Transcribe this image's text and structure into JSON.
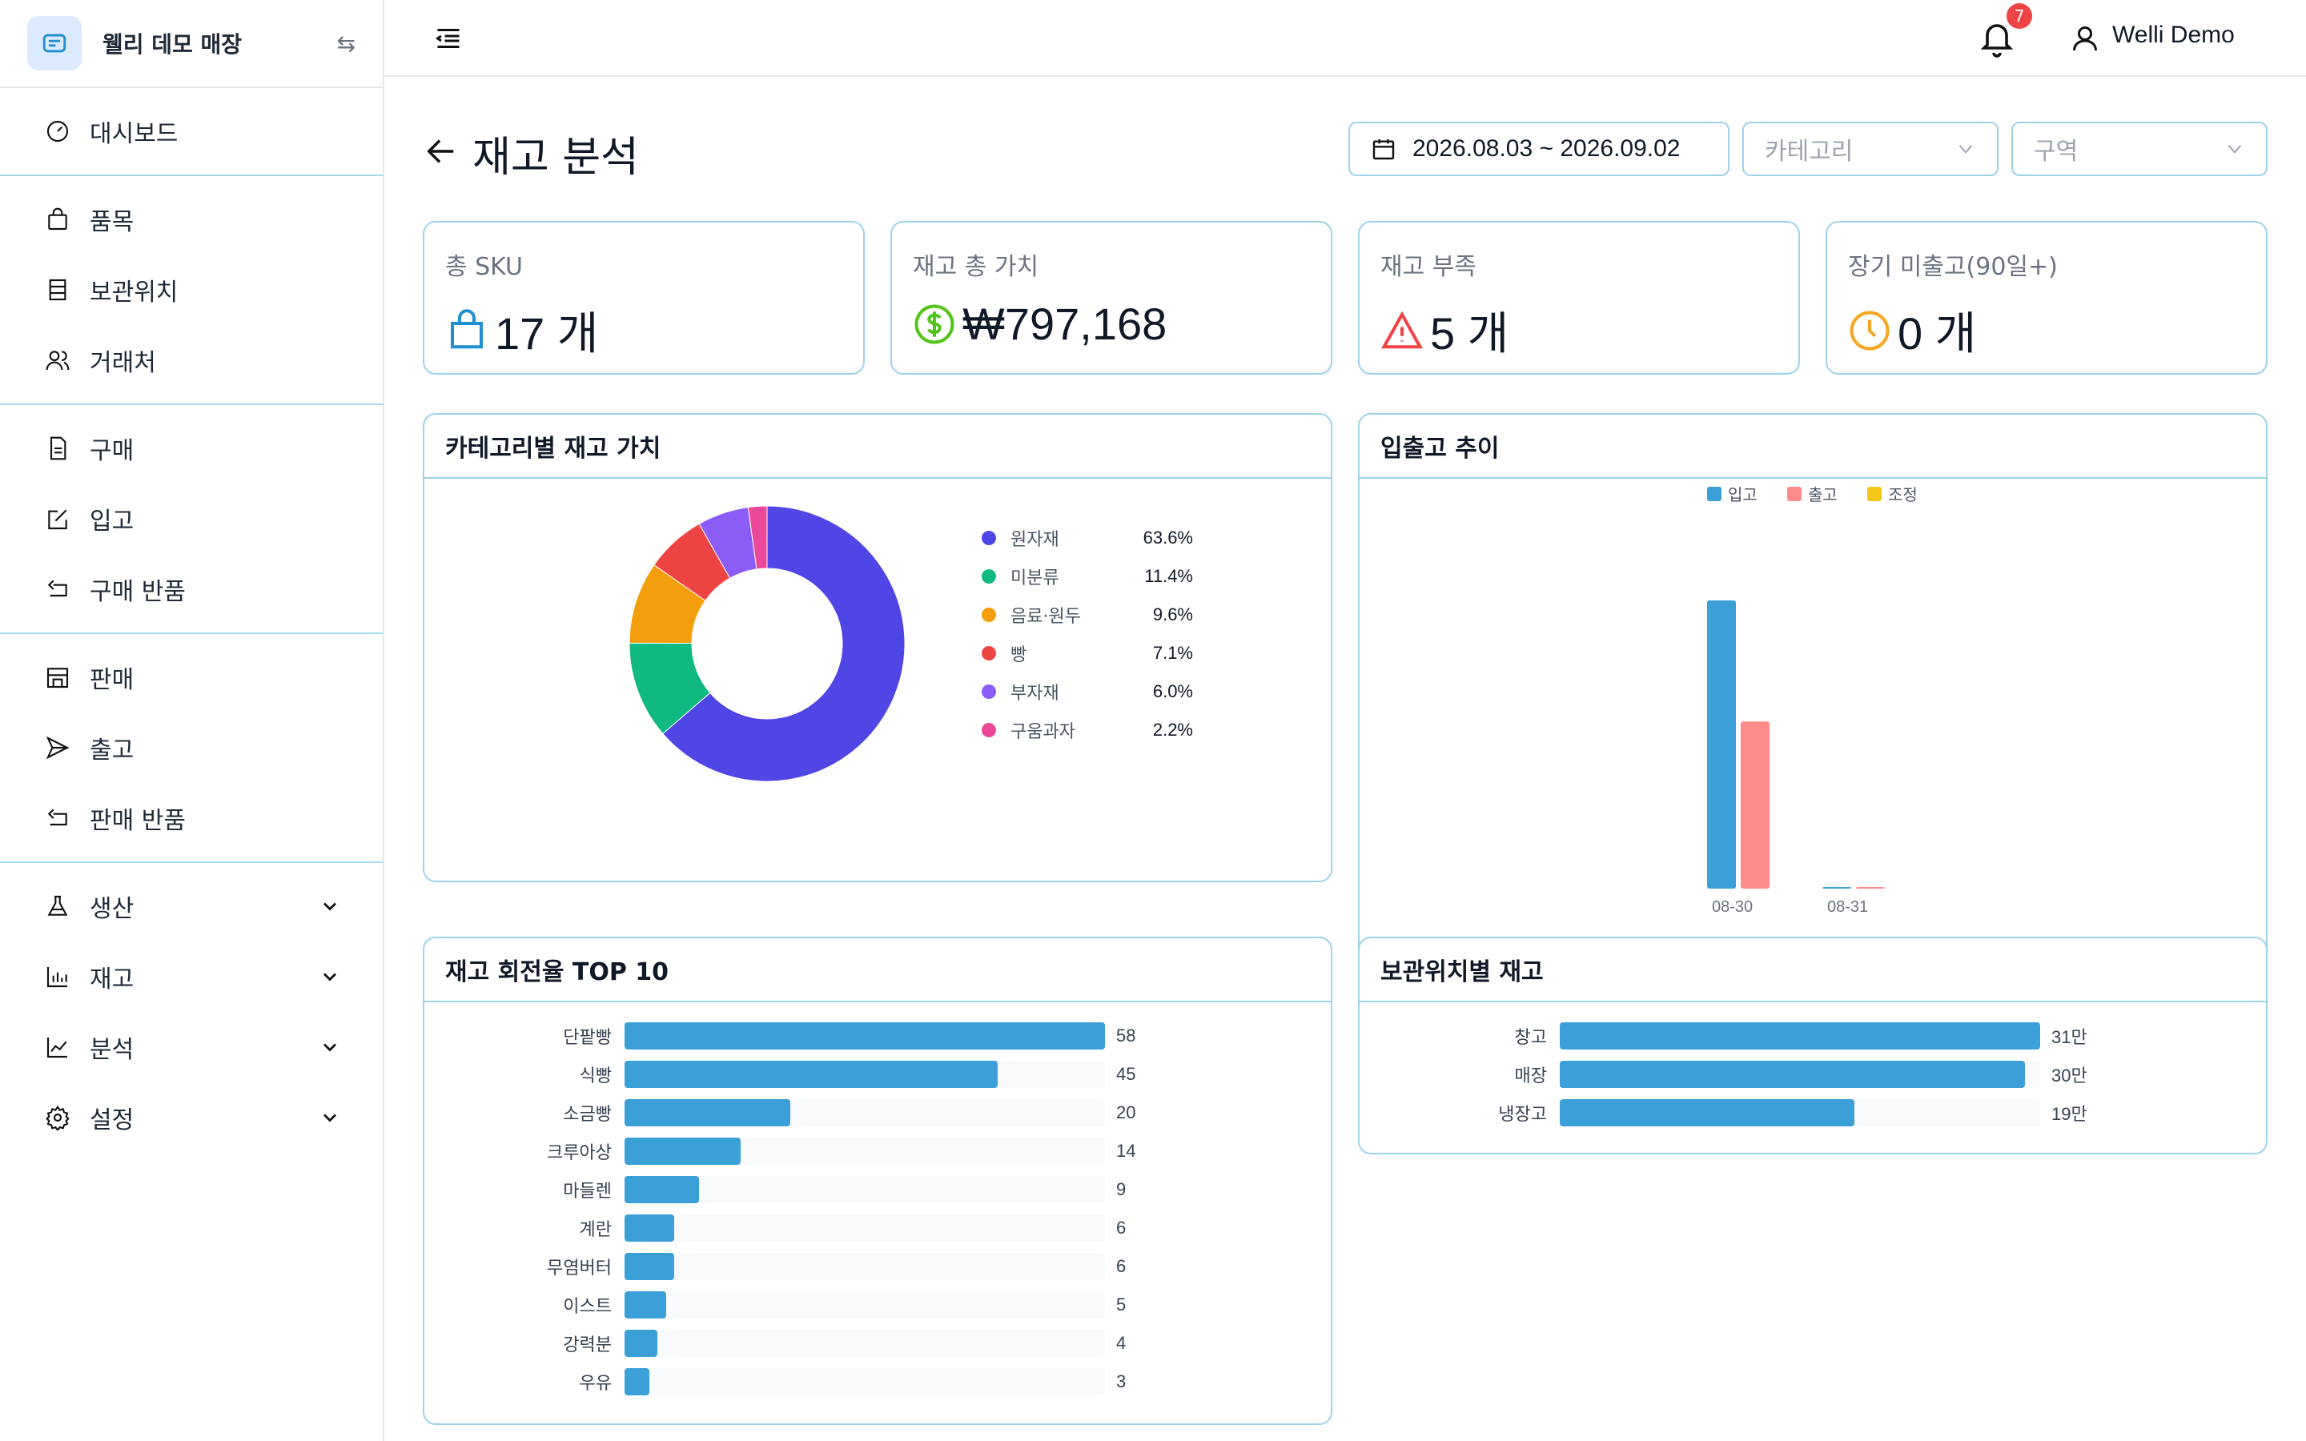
{
  "brand": {
    "name": "웰리 데모 매장",
    "swap_icon": "swap-icon"
  },
  "nav": {
    "dashboard": "대시보드",
    "items": "품목",
    "locations": "보관위치",
    "partners": "거래처",
    "purchase": "구매",
    "inbound": "입고",
    "purchase_return": "구매 반품",
    "sales": "판매",
    "outbound": "출고",
    "sales_return": "판매 반품",
    "production": "생산",
    "inventory": "재고",
    "analysis": "분석",
    "settings": "설정"
  },
  "header": {
    "notification_count": "7",
    "user_name": "Welli Demo"
  },
  "page": {
    "title": "재고 분석"
  },
  "filters": {
    "date_range": "2026.08.03 ~ 2026.09.02",
    "category_placeholder": "카테고리",
    "zone_placeholder": "구역"
  },
  "kpis": [
    {
      "label": "총 SKU",
      "value": "17 개",
      "icon": "bag-icon",
      "color": "#1f8fd1"
    },
    {
      "label": "재고 총 가치",
      "value": "₩797,168",
      "icon": "dollar-icon",
      "color": "#52c41a"
    },
    {
      "label": "재고 부족",
      "value": "5 개",
      "icon": "warning-icon",
      "color": "#ef4444"
    },
    {
      "label": "장기 미출고(90일+)",
      "value": "0 개",
      "icon": "clock-icon",
      "color": "#f5a623"
    }
  ],
  "panels": {
    "donut_title": "카테고리별 재고 가치",
    "trend_title": "입출고 추이",
    "turnover_title": "재고 회전율 TOP 10",
    "location_title": "보관위치별 재고"
  },
  "chart_data": [
    {
      "type": "pie",
      "title": "카테고리별 재고 가치",
      "categories": [
        "원자재",
        "미분류",
        "음료·원두",
        "빵",
        "부자재",
        "구움과자"
      ],
      "values": [
        63.6,
        11.4,
        9.6,
        7.1,
        6.0,
        2.2
      ],
      "labels": [
        "63.6%",
        "11.4%",
        "9.6%",
        "7.1%",
        "6.0%",
        "2.2%"
      ],
      "colors": [
        "#5046e5",
        "#10b981",
        "#f59e0b",
        "#ef4444",
        "#8b5cf6",
        "#ec4899"
      ],
      "legend": "right"
    },
    {
      "type": "bar",
      "title": "입출고 추이",
      "categories": [
        "08-30",
        "08-31"
      ],
      "series": [
        {
          "name": "입고",
          "values": [
            100,
            0
          ],
          "color": "#3b9fd8"
        },
        {
          "name": "출고",
          "values": [
            58,
            0
          ],
          "color": "#ff8a8a"
        },
        {
          "name": "조정",
          "values": [
            0,
            0
          ],
          "color": "#f5c518"
        }
      ],
      "legend": "top-center"
    },
    {
      "type": "bar",
      "orientation": "horizontal",
      "title": "재고 회전율 TOP 10",
      "categories": [
        "단팥빵",
        "식빵",
        "소금빵",
        "크루아상",
        "마들렌",
        "계란",
        "무염버터",
        "이스트",
        "강력분",
        "우유"
      ],
      "values": [
        58,
        45,
        20,
        14,
        9,
        6,
        6,
        5,
        4,
        3
      ],
      "labels": [
        "58",
        "45",
        "20",
        "14",
        "9",
        "6",
        "6",
        "5",
        "4",
        "3"
      ],
      "xlim": [
        0,
        58
      ],
      "color": "#3b9fd8"
    },
    {
      "type": "bar",
      "orientation": "horizontal",
      "title": "보관위치별 재고",
      "categories": [
        "창고",
        "매장",
        "냉장고"
      ],
      "values": [
        31,
        30,
        19
      ],
      "labels": [
        "31만",
        "30만",
        "19만"
      ],
      "xlim": [
        0,
        31
      ],
      "color": "#3b9fd8"
    }
  ]
}
